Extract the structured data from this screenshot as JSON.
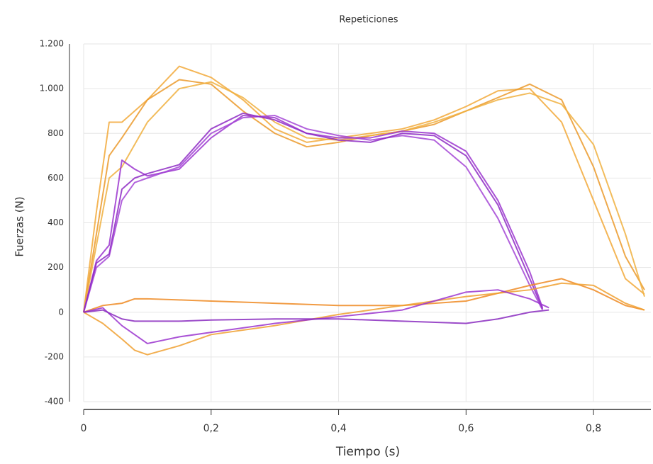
{
  "chart_data": {
    "type": "line",
    "title": "Repeticiones",
    "x_label": "Tiempo (s)",
    "y_label": "Fuerzas (N)",
    "xlim": [
      0,
      0.89
    ],
    "ylim": [
      -400,
      1200
    ],
    "xticks": [
      0,
      {
        "value": 0.2,
        "label": "0,2"
      },
      {
        "value": 0.4,
        "label": "0,4"
      },
      {
        "value": 0.6,
        "label": "0,6"
      },
      {
        "value": 0.8,
        "label": "0,8"
      }
    ],
    "yticks": [
      -400,
      -200,
      0,
      200,
      400,
      600,
      800,
      {
        "value": 1000,
        "label": "1.000"
      },
      {
        "value": 1200,
        "label": "1.200"
      }
    ],
    "grid": true,
    "series": [
      {
        "color": "#f2a93a",
        "x": [
          0,
          0.02,
          0.04,
          0.06,
          0.1,
          0.15,
          0.2,
          0.25,
          0.3,
          0.35,
          0.4,
          0.45,
          0.5,
          0.55,
          0.6,
          0.65,
          0.7,
          0.75,
          0.8,
          0.85,
          0.88
        ],
        "values": [
          0,
          450,
          850,
          850,
          950,
          1100,
          1050,
          950,
          820,
          760,
          780,
          800,
          820,
          860,
          920,
          990,
          1000,
          850,
          500,
          150,
          80
        ]
      },
      {
        "color": "#eb9a2c",
        "x": [
          0,
          0.02,
          0.04,
          0.06,
          0.1,
          0.15,
          0.2,
          0.25,
          0.3,
          0.35,
          0.4,
          0.45,
          0.5,
          0.55,
          0.6,
          0.65,
          0.7,
          0.75,
          0.8,
          0.85,
          0.88
        ],
        "values": [
          0,
          350,
          700,
          780,
          950,
          1040,
          1020,
          900,
          800,
          740,
          760,
          790,
          810,
          840,
          900,
          960,
          1020,
          950,
          650,
          250,
          100
        ]
      },
      {
        "color": "#f0b040",
        "x": [
          0,
          0.02,
          0.04,
          0.06,
          0.1,
          0.15,
          0.2,
          0.25,
          0.3,
          0.35,
          0.4,
          0.45,
          0.5,
          0.55,
          0.6,
          0.65,
          0.7,
          0.75,
          0.8,
          0.85,
          0.88
        ],
        "values": [
          0,
          300,
          600,
          650,
          850,
          1000,
          1030,
          960,
          850,
          780,
          770,
          790,
          810,
          850,
          900,
          950,
          980,
          930,
          750,
          350,
          70
        ]
      },
      {
        "color": "#9b35cf",
        "x": [
          0,
          0.02,
          0.04,
          0.06,
          0.08,
          0.1,
          0.15,
          0.2,
          0.25,
          0.3,
          0.35,
          0.4,
          0.45,
          0.5,
          0.55,
          0.6,
          0.65,
          0.7,
          0.72
        ],
        "values": [
          0,
          230,
          300,
          680,
          640,
          610,
          640,
          780,
          880,
          870,
          800,
          780,
          780,
          810,
          800,
          720,
          500,
          180,
          20
        ]
      },
      {
        "color": "#a547d6",
        "x": [
          0,
          0.02,
          0.04,
          0.06,
          0.08,
          0.1,
          0.15,
          0.2,
          0.25,
          0.3,
          0.35,
          0.4,
          0.45,
          0.5,
          0.55,
          0.6,
          0.65,
          0.7,
          0.72
        ],
        "values": [
          0,
          200,
          250,
          500,
          580,
          600,
          650,
          800,
          870,
          880,
          820,
          790,
          770,
          790,
          770,
          650,
          420,
          120,
          10
        ]
      },
      {
        "color": "#8e2cc4",
        "x": [
          0,
          0.02,
          0.04,
          0.06,
          0.08,
          0.1,
          0.15,
          0.2,
          0.25,
          0.3,
          0.35,
          0.4,
          0.45,
          0.5,
          0.55,
          0.6,
          0.65,
          0.7,
          0.72
        ],
        "values": [
          0,
          220,
          260,
          550,
          600,
          620,
          660,
          820,
          890,
          860,
          800,
          770,
          760,
          800,
          790,
          700,
          480,
          150,
          15
        ]
      },
      {
        "color": "#ee8a22",
        "x": [
          0,
          0.03,
          0.06,
          0.08,
          0.1,
          0.15,
          0.2,
          0.3,
          0.4,
          0.5,
          0.6,
          0.7,
          0.75,
          0.8,
          0.85,
          0.88
        ],
        "values": [
          0,
          30,
          40,
          60,
          60,
          55,
          50,
          40,
          30,
          30,
          50,
          120,
          150,
          100,
          30,
          10
        ]
      },
      {
        "color": "#f0a030",
        "x": [
          0,
          0.03,
          0.06,
          0.08,
          0.1,
          0.15,
          0.2,
          0.3,
          0.4,
          0.5,
          0.6,
          0.7,
          0.75,
          0.8,
          0.85,
          0.88
        ],
        "values": [
          0,
          -50,
          -120,
          -170,
          -190,
          -150,
          -100,
          -60,
          -10,
          30,
          70,
          100,
          130,
          120,
          40,
          10
        ]
      },
      {
        "color": "#9b35cf",
        "x": [
          0,
          0.03,
          0.06,
          0.08,
          0.1,
          0.15,
          0.2,
          0.3,
          0.4,
          0.5,
          0.6,
          0.65,
          0.7,
          0.73
        ],
        "values": [
          0,
          20,
          -60,
          -100,
          -140,
          -110,
          -90,
          -50,
          -20,
          10,
          90,
          100,
          60,
          20
        ]
      },
      {
        "color": "#8a2cc0",
        "x": [
          0,
          0.03,
          0.06,
          0.08,
          0.1,
          0.15,
          0.2,
          0.3,
          0.4,
          0.5,
          0.6,
          0.65,
          0.7,
          0.73
        ],
        "values": [
          0,
          10,
          -30,
          -40,
          -40,
          -40,
          -35,
          -30,
          -30,
          -40,
          -50,
          -30,
          0,
          10
        ]
      }
    ]
  }
}
